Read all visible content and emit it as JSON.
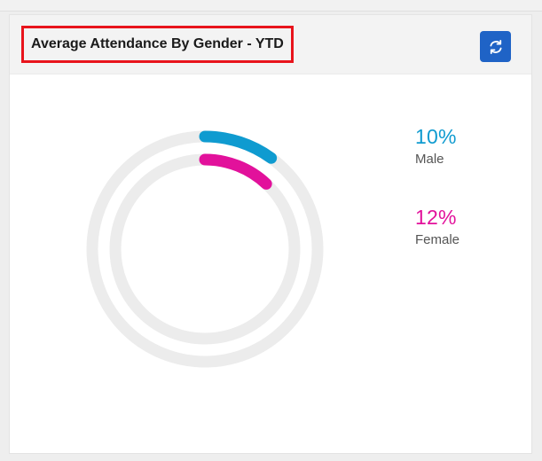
{
  "widget": {
    "title": "Average Attendance By Gender - YTD",
    "refresh_icon": "refresh-icon"
  },
  "chart_data": {
    "type": "radial-bar",
    "series": [
      {
        "name": "Male",
        "value": 10,
        "display": "10%",
        "color": "#0f9bd0"
      },
      {
        "name": "Female",
        "value": 12,
        "display": "12%",
        "color": "#e2119b"
      }
    ],
    "max": 100,
    "track_color": "#ececec"
  }
}
